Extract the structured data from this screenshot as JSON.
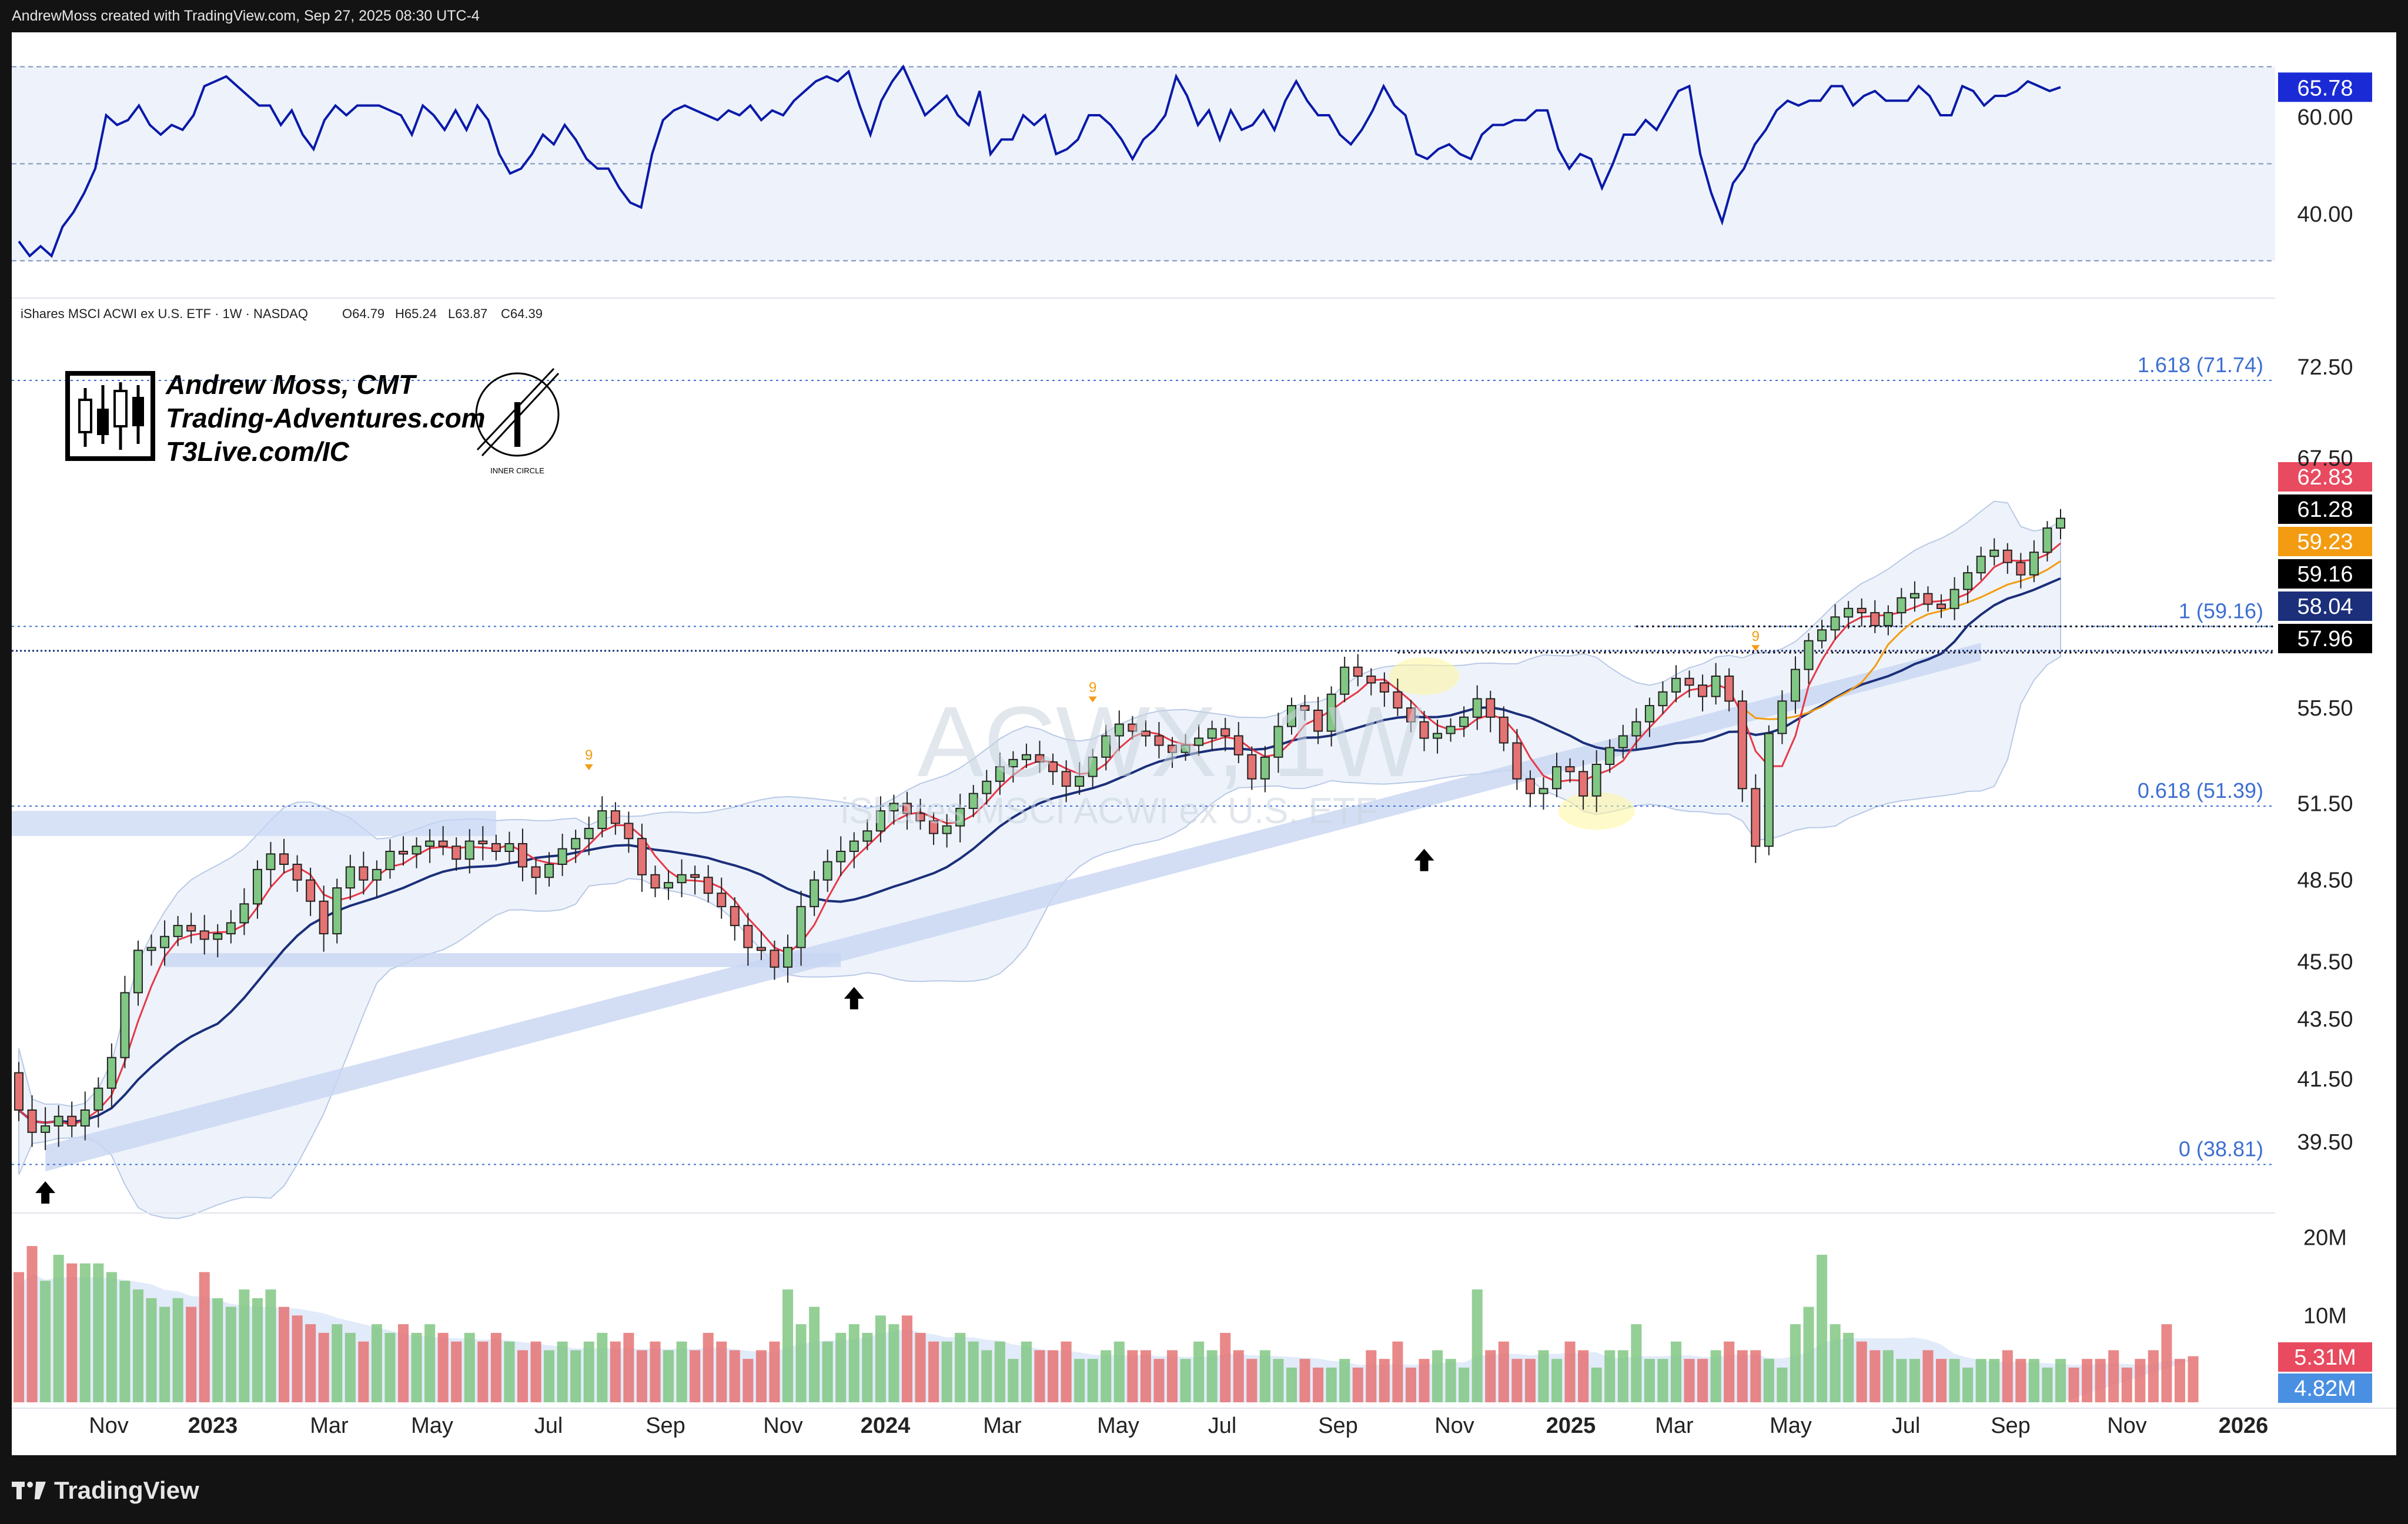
{
  "header": {
    "attribution": "AndrewMoss created with TradingView.com, Sep 27, 2025 08:30 UTC-4"
  },
  "footer": {
    "brand": "TradingView"
  },
  "branding": {
    "name": "Andrew Moss, CMT",
    "site1": "Trading-Adventures.com",
    "site2": "T3Live.com/IC",
    "seal_text": "INNER CIRCLE"
  },
  "symbol": {
    "description": "iShares MSCI ACWI ex U.S. ETF · 1W · NASDAQ",
    "open": "O64.79",
    "high": "H65.24",
    "low": "L63.87",
    "close": "C64.39",
    "watermark_ticker": "ACWX, 1W",
    "watermark_name": "iShares MSCI ACWI ex U.S. ETF"
  },
  "colors": {
    "up": "#81c784",
    "down": "#e57373",
    "rsi": "#0a1aa8",
    "ma_fast": "#e63946",
    "ma_slow": "#1b2f7a",
    "ma_mid": "#f39c12",
    "fib": "#3d6fd1"
  },
  "chart_data": [
    {
      "type": "line",
      "panel": "rsi",
      "y_ticks": [
        "60.00",
        "40.00"
      ],
      "ylim": [
        28,
        72
      ],
      "last_value_label": "65.78",
      "values": [
        34,
        31,
        33,
        31,
        37,
        40,
        44,
        49,
        60,
        58,
        59,
        62,
        58,
        56,
        58,
        57,
        60,
        66,
        67,
        68,
        66,
        64,
        62,
        62,
        58,
        61,
        56,
        53,
        59,
        62,
        60,
        62,
        62,
        62,
        61,
        60,
        56,
        62,
        60,
        57,
        61,
        57,
        62,
        59,
        52,
        48,
        49,
        52,
        56,
        54,
        58,
        55,
        51,
        49,
        49,
        45,
        42,
        41,
        52,
        59,
        61,
        62,
        61,
        60,
        59,
        61,
        60,
        62,
        59,
        61,
        60,
        63,
        65,
        67,
        68,
        67,
        69,
        62,
        56,
        63,
        67,
        70,
        65,
        60,
        62,
        64,
        60,
        58,
        65,
        52,
        55,
        55,
        60,
        58,
        60,
        52,
        53,
        55,
        60,
        60,
        58,
        55,
        51,
        55,
        57,
        60,
        68,
        64,
        58,
        61,
        55,
        61,
        57,
        58,
        61,
        57,
        63,
        67,
        63,
        60,
        60,
        56,
        54,
        57,
        61,
        66,
        62,
        60,
        52,
        51,
        53,
        54,
        52,
        51,
        56,
        58,
        58,
        59,
        59,
        61,
        61,
        53,
        49,
        52,
        51,
        45,
        50,
        56,
        56,
        59,
        57,
        61,
        65,
        66,
        52,
        44,
        38,
        46,
        49,
        54,
        57,
        61,
        63,
        62,
        63,
        63,
        66,
        66,
        62,
        64,
        65,
        63,
        63,
        63,
        66,
        64,
        60,
        60,
        66,
        65,
        62,
        64,
        64,
        65,
        67,
        66,
        65,
        65.78
      ]
    },
    {
      "type": "candlestick",
      "panel": "price",
      "timeframe": "1W",
      "ylim": [
        37.5,
        74.5
      ],
      "y_ticks": [
        "72.50",
        "67.50",
        "55.50",
        "51.50",
        "48.50",
        "45.50",
        "43.50",
        "41.50",
        "39.50"
      ],
      "x_ticks": [
        "Nov",
        "2023",
        "Mar",
        "May",
        "Jul",
        "Sep",
        "Nov",
        "2024",
        "Mar",
        "May",
        "Jul",
        "Sep",
        "Nov",
        "2025",
        "Mar",
        "May",
        "Jul",
        "Sep",
        "Nov",
        "2026"
      ],
      "closes": [
        40.5,
        39.8,
        40.0,
        40.3,
        40.0,
        40.5,
        41.2,
        42.2,
        44.4,
        45.9,
        46.0,
        46.4,
        46.8,
        46.6,
        46.3,
        46.5,
        46.9,
        47.6,
        48.9,
        49.5,
        49.1,
        48.5,
        47.7,
        46.5,
        48.2,
        49.0,
        48.5,
        48.9,
        49.6,
        49.5,
        49.8,
        50.0,
        49.8,
        49.3,
        50.0,
        49.9,
        49.6,
        49.9,
        49.0,
        48.6,
        49.1,
        49.7,
        50.1,
        50.5,
        51.2,
        50.7,
        50.1,
        48.7,
        48.2,
        48.4,
        48.7,
        48.6,
        48.0,
        47.5,
        46.8,
        46.0,
        45.9,
        45.3,
        46.0,
        47.5,
        48.5,
        49.2,
        49.6,
        50.0,
        50.4,
        51.2,
        51.5,
        51.1,
        50.8,
        50.3,
        50.6,
        51.3,
        51.9,
        52.4,
        53.0,
        53.3,
        53.5,
        53.2,
        52.8,
        52.2,
        52.6,
        53.4,
        54.3,
        54.8,
        54.5,
        54.3,
        53.9,
        53.6,
        53.9,
        54.2,
        54.6,
        54.3,
        53.5,
        52.5,
        53.4,
        54.7,
        55.6,
        55.4,
        54.5,
        56.1,
        57.3,
        56.9,
        56.6,
        56.2,
        55.5,
        54.9,
        54.2,
        54.4,
        54.7,
        55.1,
        55.9,
        55.1,
        54.0,
        52.5,
        51.9,
        52.1,
        53.0,
        52.8,
        51.8,
        53.1,
        53.8,
        54.3,
        54.9,
        55.6,
        56.2,
        56.8,
        56.5,
        56.0,
        56.9,
        55.8,
        52.1,
        49.8,
        54.4,
        55.8,
        57.2,
        58.5,
        59.0,
        59.6,
        60.0,
        59.8,
        59.2,
        59.8,
        60.5,
        60.7,
        60.2,
        60.0,
        60.9,
        61.7,
        62.5,
        62.8,
        62.2,
        61.6,
        62.7,
        63.9,
        64.39
      ],
      "last_bars": [
        {
          "date": "2025-09-05",
          "open": 63.1,
          "high": 64.3,
          "low": 62.8,
          "close": 64.0
        },
        {
          "date": "2025-09-12",
          "open": 64.0,
          "high": 65.0,
          "low": 63.5,
          "close": 64.7
        },
        {
          "date": "2025-09-19",
          "open": 64.79,
          "high": 65.24,
          "low": 63.87,
          "close": 64.39
        }
      ],
      "fib_levels": [
        {
          "label": "1.618 (71.74)",
          "value": 71.74
        },
        {
          "label": "1 (59.16)",
          "value": 59.16
        },
        {
          "label": "0.618 (51.39)",
          "value": 51.39
        },
        {
          "label": "0 (38.81)",
          "value": 38.81
        }
      ],
      "horizontal_lines": [
        59.16,
        58.04,
        57.96
      ],
      "price_labels": [
        {
          "value": "62.83",
          "color": "#e84a5f"
        },
        {
          "value": "61.28",
          "color": "#000000"
        },
        {
          "value": "59.23",
          "color": "#f39c12"
        },
        {
          "value": "59.16",
          "color": "#000000"
        },
        {
          "value": "58.04",
          "color": "#1b2f7a"
        },
        {
          "value": "57.96",
          "color": "#000000"
        }
      ],
      "td_count_markers": [
        "9",
        "9",
        "9"
      ],
      "arrow_markers": 4
    },
    {
      "type": "bar",
      "panel": "volume",
      "y_ticks": [
        "20M",
        "10M"
      ],
      "ylim": [
        0,
        21
      ],
      "last_value_labels": [
        {
          "value": "5.31M",
          "color": "#e84a5f"
        },
        {
          "value": "4.82M",
          "color": "#4a90e2"
        }
      ],
      "values": [
        15,
        18,
        14,
        17,
        16,
        16,
        16,
        15,
        14,
        13,
        12,
        11,
        12,
        11,
        15,
        12,
        11,
        13,
        12,
        13,
        11,
        10,
        9,
        8,
        9,
        8,
        7,
        9,
        8,
        9,
        8,
        9,
        8,
        7,
        8,
        7,
        8,
        7,
        6,
        7,
        6,
        7,
        6,
        7,
        8,
        7,
        8,
        6,
        7,
        6,
        7,
        6,
        8,
        7,
        6,
        5,
        6,
        7,
        13,
        9,
        11,
        7,
        8,
        9,
        8,
        10,
        9,
        10,
        8,
        7,
        7,
        8,
        7,
        6,
        7,
        5,
        7,
        6,
        6,
        7,
        5,
        5,
        6,
        7,
        6,
        6,
        5,
        6,
        5,
        7,
        6,
        8,
        6,
        5,
        6,
        5,
        4,
        5,
        4,
        4,
        5,
        4,
        6,
        5,
        7,
        4,
        5,
        6,
        5,
        4,
        13,
        6,
        7,
        5,
        5,
        6,
        5,
        7,
        6,
        4,
        6,
        6,
        9,
        5,
        5,
        7,
        5,
        5,
        6,
        7,
        6,
        6,
        5,
        4,
        9,
        11,
        17,
        9,
        8,
        7,
        6,
        6,
        5,
        5,
        6,
        5,
        5,
        4,
        5,
        5,
        6,
        5,
        5,
        4,
        5,
        4,
        5,
        5,
        6,
        4,
        5,
        6,
        9,
        5,
        5.31
      ]
    }
  ]
}
